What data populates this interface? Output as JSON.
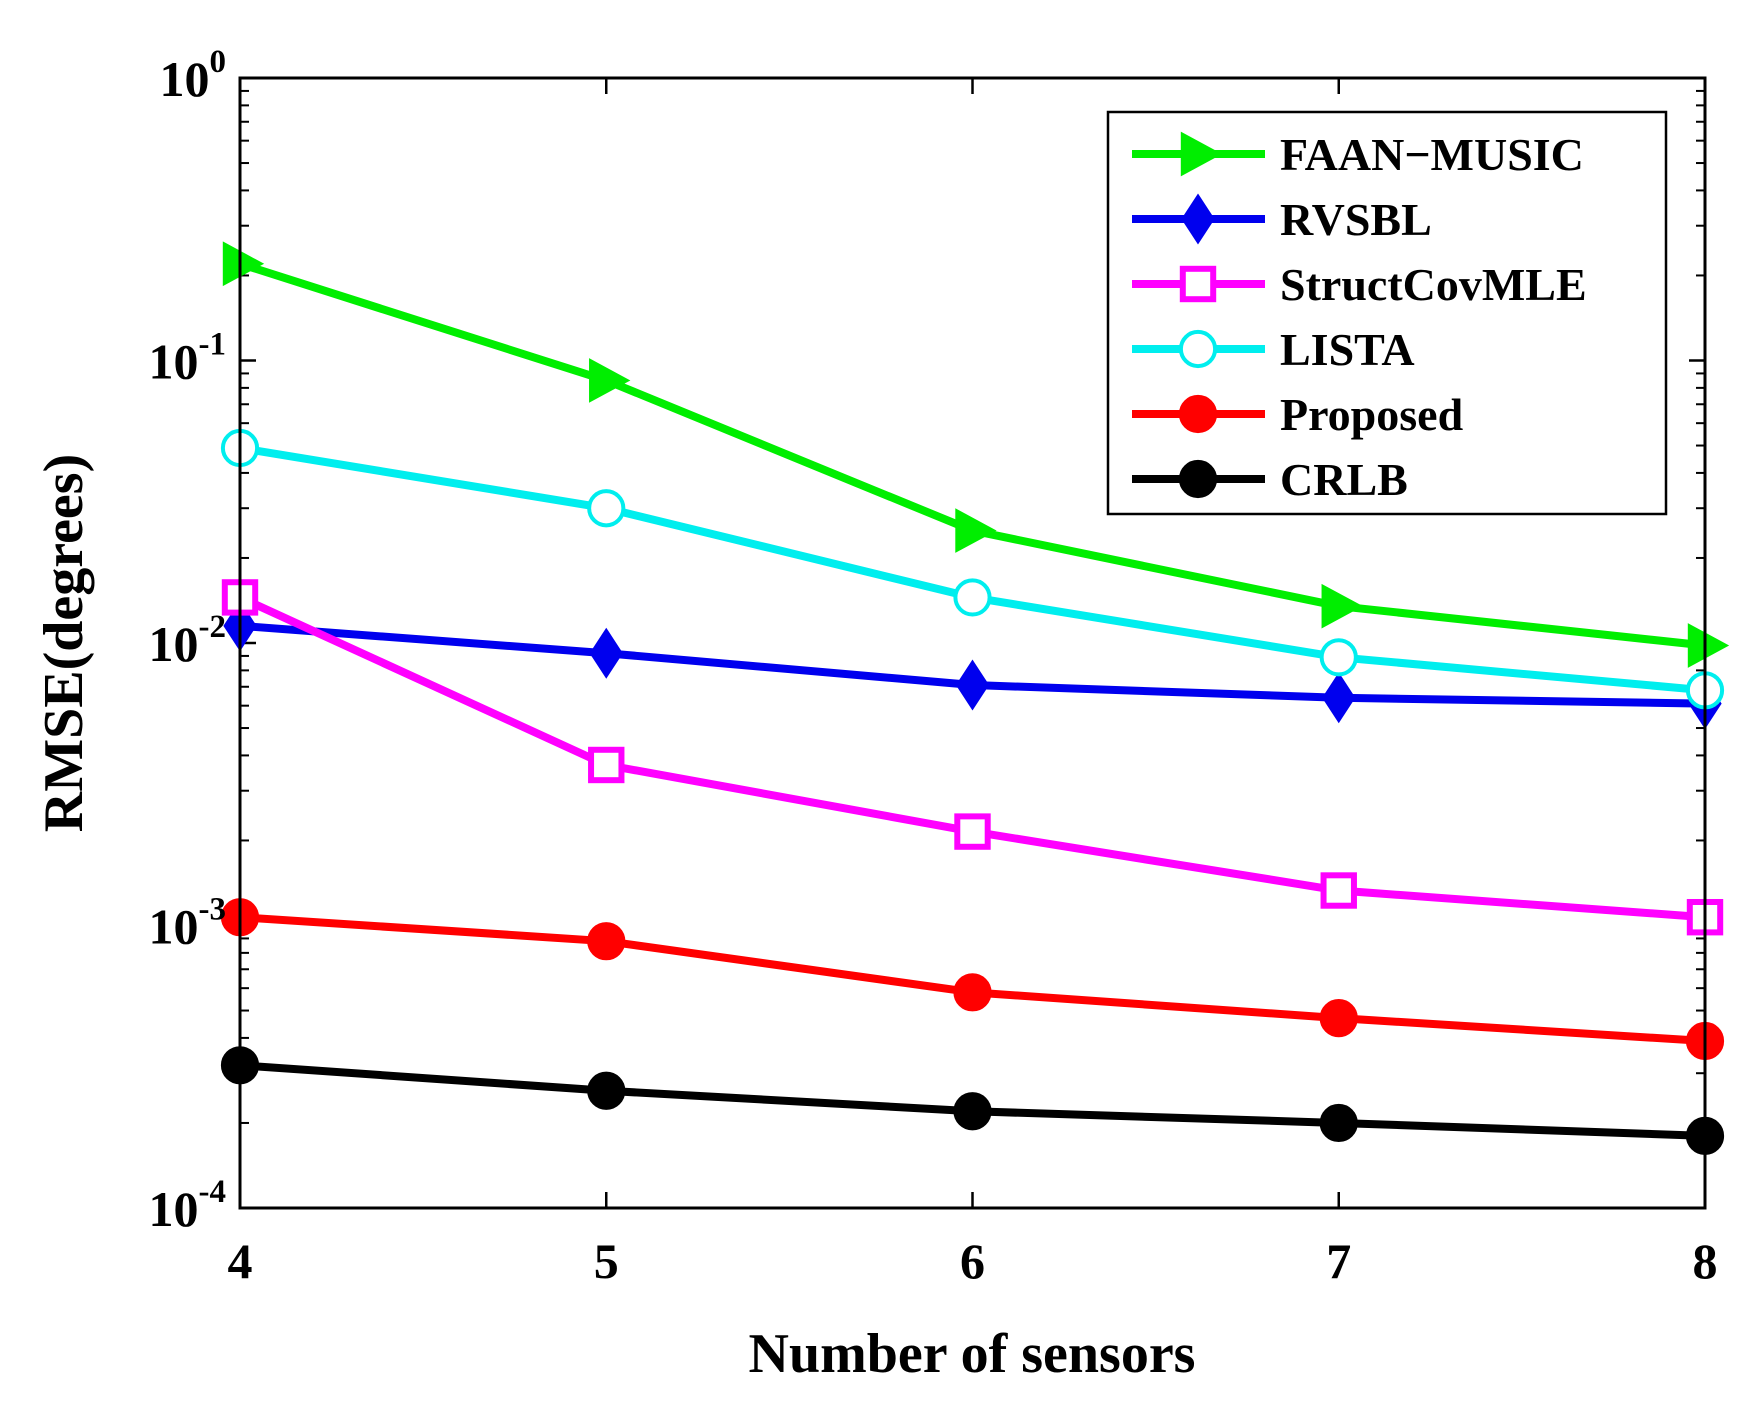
{
  "chart_data": {
    "type": "line",
    "title": "",
    "xlabel": "Number of sensors",
    "ylabel": "RMSE(degrees)",
    "yscale": "log",
    "x": [
      4,
      5,
      6,
      7,
      8
    ],
    "xlim": [
      4,
      8
    ],
    "ylim": [
      0.0001,
      1
    ],
    "xticks": [
      "4",
      "5",
      "6",
      "7",
      "8"
    ],
    "yticks": [
      {
        "base": "10",
        "exp": "-4"
      },
      {
        "base": "10",
        "exp": "-3"
      },
      {
        "base": "10",
        "exp": "-2"
      },
      {
        "base": "10",
        "exp": "-1"
      },
      {
        "base": "10",
        "exp": "0"
      }
    ],
    "grid": false,
    "legend_position": "top-right",
    "series": [
      {
        "name": "FAAN−MUSIC",
        "color": "#00ee00",
        "marker": "triangle-right",
        "filled": true,
        "values": [
          0.22,
          0.085,
          0.025,
          0.0135,
          0.0098
        ]
      },
      {
        "name": "RVSBL",
        "color": "#0000ee",
        "marker": "diamond",
        "filled": true,
        "values": [
          0.0115,
          0.0092,
          0.0071,
          0.0064,
          0.0061
        ]
      },
      {
        "name": "StructCovMLE",
        "color": "#ff00ff",
        "marker": "square",
        "filled": false,
        "values": [
          0.0145,
          0.0037,
          0.00215,
          0.00133,
          0.00107
        ]
      },
      {
        "name": "LISTA",
        "color": "#00eeee",
        "marker": "circle",
        "filled": false,
        "values": [
          0.049,
          0.03,
          0.0145,
          0.0089,
          0.0068
        ]
      },
      {
        "name": "Proposed",
        "color": "#ff0000",
        "marker": "circle",
        "filled": true,
        "values": [
          0.00107,
          0.00088,
          0.00058,
          0.00047,
          0.00039
        ]
      },
      {
        "name": "CRLB",
        "color": "#000000",
        "marker": "circle",
        "filled": true,
        "values": [
          0.00032,
          0.00026,
          0.00022,
          0.0002,
          0.00018
        ]
      }
    ]
  }
}
